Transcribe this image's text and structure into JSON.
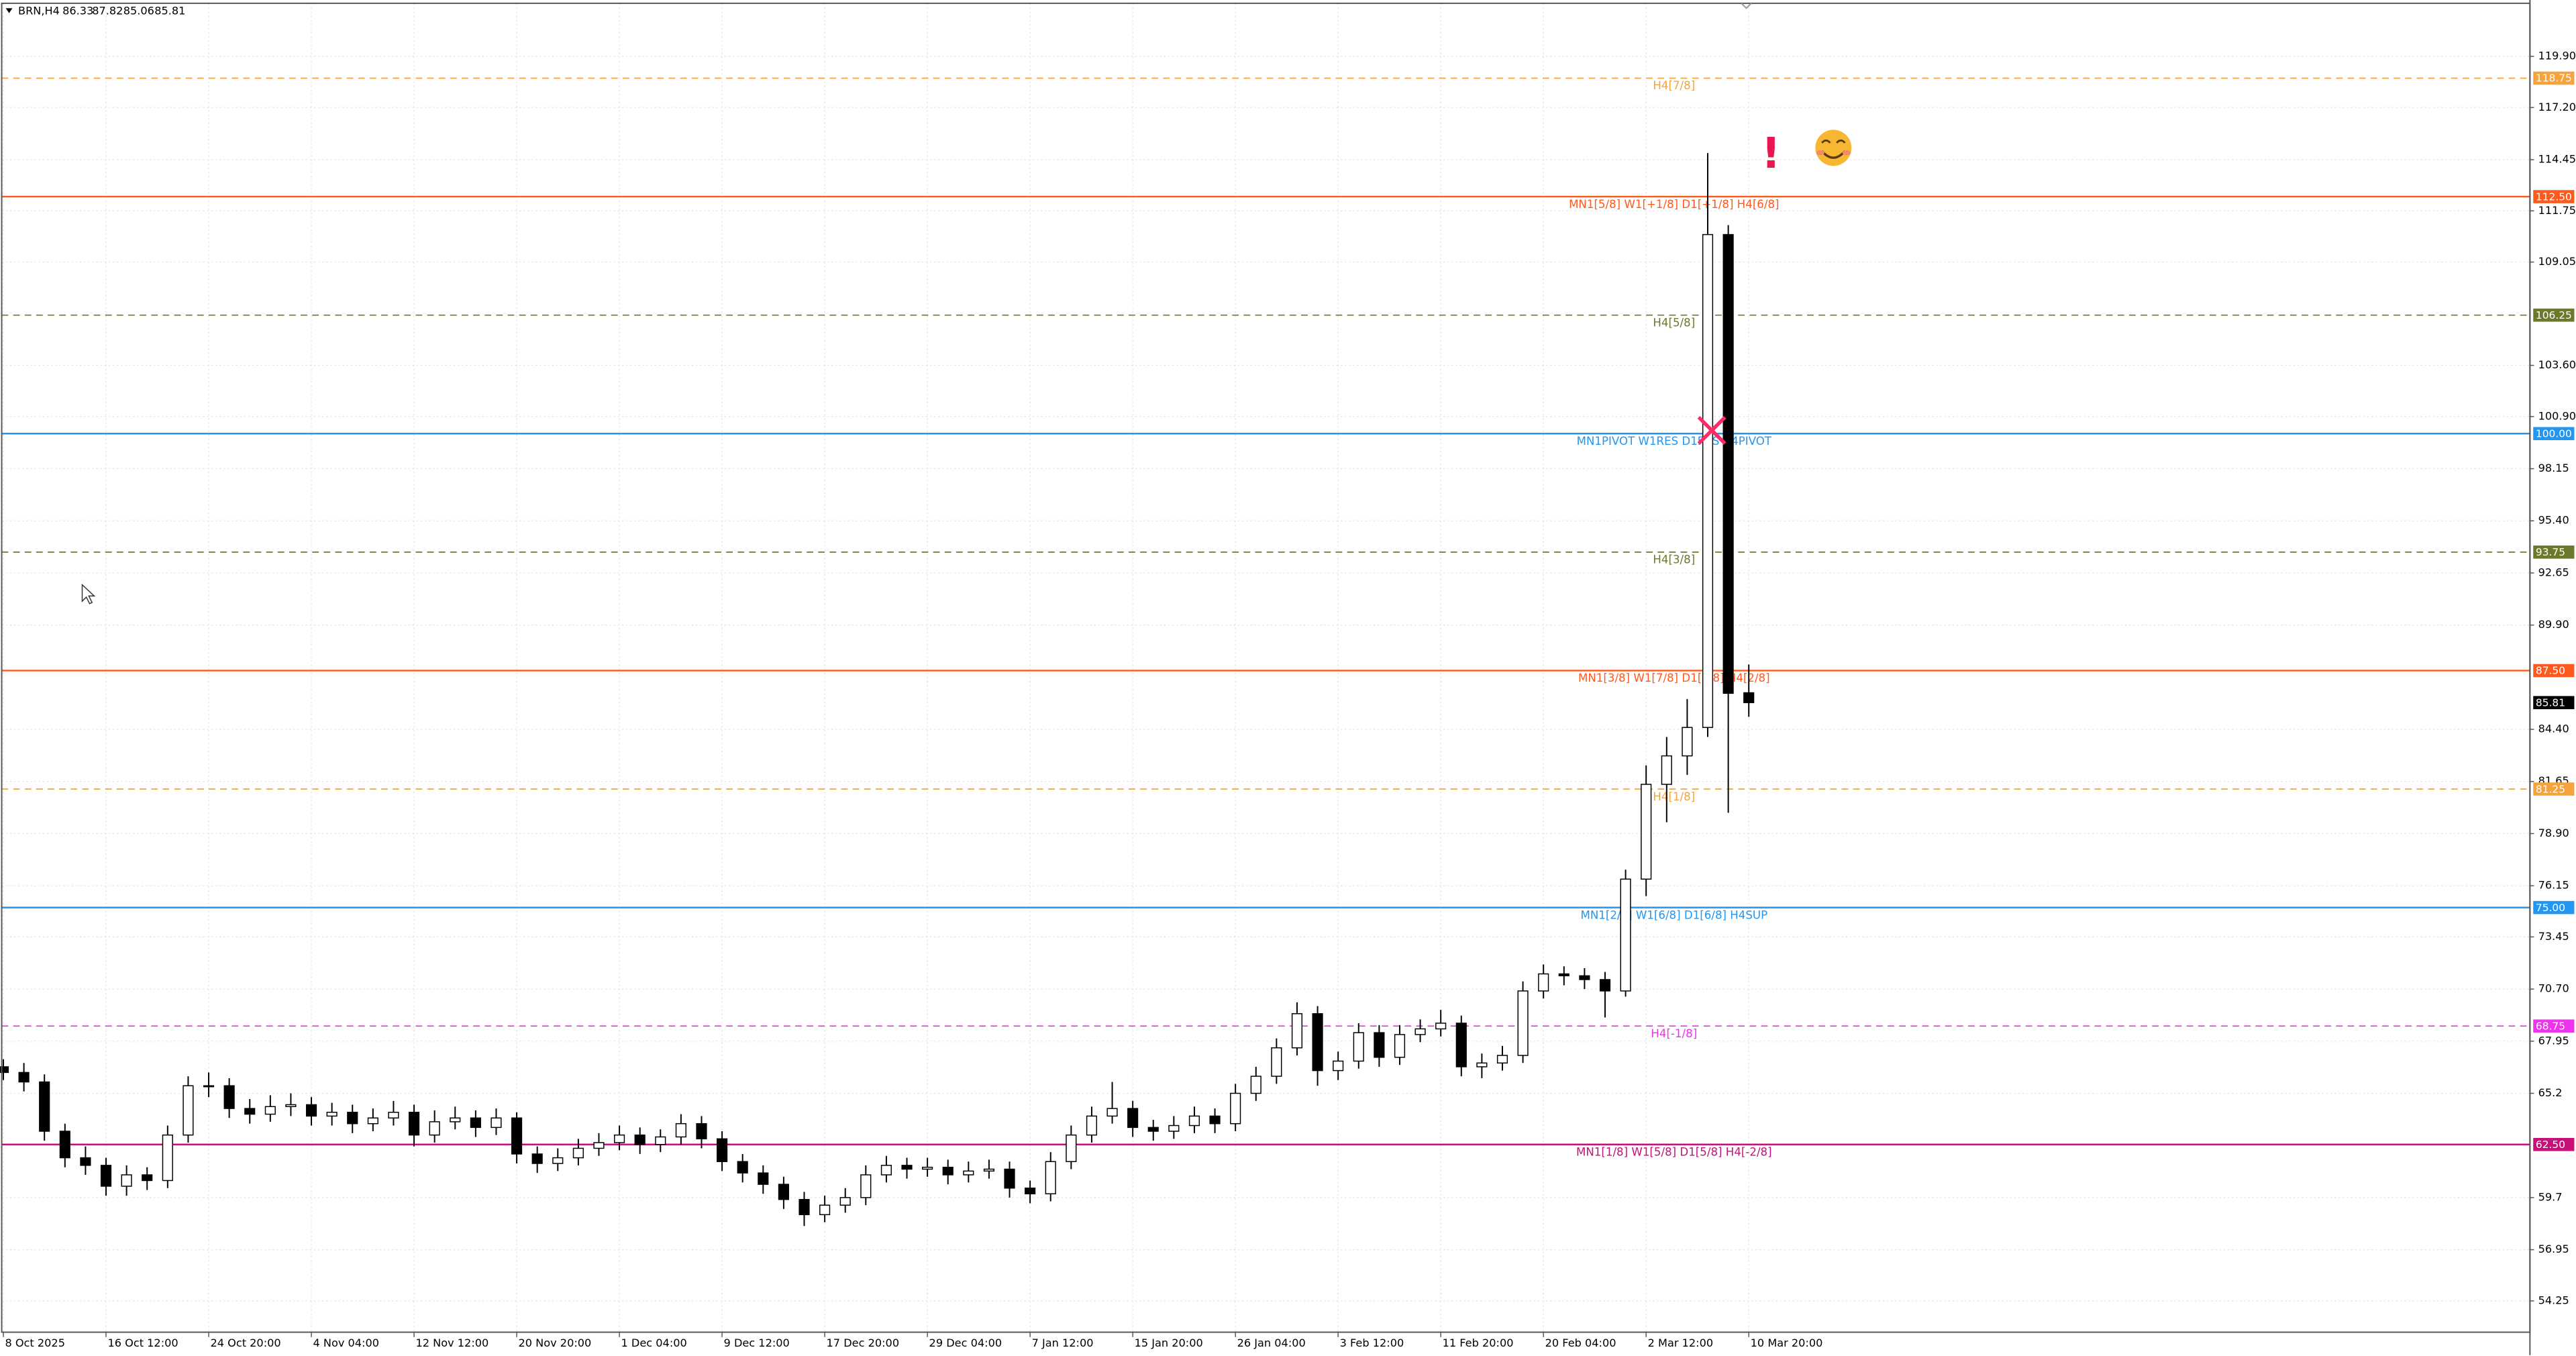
{
  "chart_data": {
    "type": "candlestick",
    "symbol": "BRN,H4",
    "categories": [
      "8 Oct 2025",
      null,
      null,
      null,
      null,
      "16 Oct 12:00",
      null,
      null,
      null,
      null,
      "24 Oct 20:00",
      null,
      null,
      null,
      null,
      "4 Nov 04:00",
      null,
      null,
      null,
      null,
      "12 Nov 12:00",
      null,
      null,
      null,
      null,
      "20 Nov 20:00",
      null,
      null,
      null,
      null,
      "1 Dec 04:00",
      null,
      null,
      null,
      null,
      "9 Dec 12:00",
      null,
      null,
      null,
      null,
      "17 Dec 20:00",
      null,
      null,
      null,
      null,
      "29 Dec 04:00",
      null,
      null,
      null,
      null,
      "7 Jan 12:00",
      null,
      null,
      null,
      null,
      "15 Jan 20:00",
      null,
      null,
      null,
      null,
      "26 Jan 04:00",
      null,
      null,
      null,
      null,
      "3 Feb 12:00",
      null,
      null,
      null,
      null,
      "11 Feb 20:00",
      null,
      null,
      null,
      null,
      "20 Feb 04:00",
      null,
      null,
      null,
      null,
      "2 Mar 12:00",
      null,
      null,
      null,
      null,
      "10 Mar 20:00"
    ],
    "open": [
      66.6,
      66.3,
      65.8,
      63.2,
      61.8,
      61.4,
      60.3,
      60.9,
      60.6,
      63.0,
      65.6,
      65.6,
      64.4,
      64.1,
      64.5,
      64.6,
      64.0,
      64.2,
      63.6,
      63.9,
      64.2,
      63.0,
      63.7,
      63.9,
      63.4,
      63.9,
      62.0,
      61.5,
      61.8,
      62.3,
      62.6,
      63.0,
      62.5,
      62.9,
      63.6,
      62.8,
      61.6,
      61.0,
      60.4,
      59.6,
      58.8,
      59.3,
      59.7,
      60.9,
      61.4,
      61.2,
      61.3,
      60.9,
      61.1,
      61.2,
      60.2,
      59.9,
      61.6,
      63.0,
      64.0,
      64.4,
      63.4,
      63.2,
      63.5,
      64.0,
      63.6,
      65.2,
      66.1,
      67.6,
      69.4,
      66.4,
      66.9,
      68.4,
      67.1,
      68.3,
      68.6,
      68.9,
      66.6,
      66.8,
      67.2,
      70.6,
      71.5,
      71.4,
      71.2,
      70.6,
      76.5,
      81.5,
      83.0,
      84.5,
      110.5,
      86.33
    ],
    "high": [
      67.0,
      66.8,
      66.2,
      63.6,
      62.4,
      61.8,
      61.4,
      61.3,
      63.5,
      66.1,
      66.3,
      66.0,
      64.9,
      65.1,
      65.2,
      65.0,
      64.7,
      64.6,
      64.4,
      64.8,
      64.6,
      64.3,
      64.5,
      64.3,
      64.4,
      64.2,
      62.4,
      62.3,
      62.8,
      63.1,
      63.5,
      63.4,
      63.3,
      64.1,
      64.0,
      63.2,
      62.0,
      61.4,
      60.8,
      60.0,
      59.8,
      60.2,
      61.4,
      61.9,
      61.8,
      61.8,
      61.7,
      61.6,
      61.7,
      61.6,
      60.6,
      62.1,
      63.5,
      64.5,
      65.8,
      64.8,
      63.8,
      64.0,
      64.5,
      64.4,
      65.7,
      66.6,
      68.1,
      70.0,
      69.8,
      67.4,
      68.9,
      68.8,
      68.8,
      69.1,
      69.6,
      69.3,
      67.3,
      67.7,
      71.1,
      72.0,
      71.9,
      71.8,
      71.6,
      77.0,
      82.5,
      84.0,
      86.0,
      114.8,
      111.0,
      87.82
    ],
    "low": [
      65.9,
      65.3,
      62.7,
      61.3,
      60.9,
      59.8,
      59.8,
      60.1,
      60.2,
      62.6,
      65.0,
      63.9,
      63.6,
      63.7,
      64.0,
      63.5,
      63.5,
      63.1,
      63.2,
      63.5,
      62.4,
      62.6,
      63.3,
      62.9,
      63.0,
      61.5,
      61.0,
      61.1,
      61.4,
      61.9,
      62.2,
      62.0,
      62.1,
      62.5,
      62.3,
      61.1,
      60.5,
      59.9,
      59.1,
      58.2,
      58.4,
      58.9,
      59.3,
      60.5,
      60.7,
      60.8,
      60.4,
      60.5,
      60.7,
      59.7,
      59.4,
      59.5,
      61.2,
      62.6,
      63.6,
      62.9,
      62.7,
      62.8,
      63.1,
      63.1,
      63.2,
      64.8,
      65.7,
      67.2,
      65.6,
      65.9,
      66.5,
      66.6,
      66.7,
      67.9,
      68.2,
      66.1,
      66.0,
      66.4,
      66.8,
      70.2,
      70.9,
      70.7,
      69.2,
      70.3,
      75.6,
      79.5,
      82.0,
      84.0,
      80.0,
      85.06
    ],
    "close": [
      66.3,
      65.8,
      63.2,
      61.8,
      61.4,
      60.3,
      60.9,
      60.6,
      63.0,
      65.6,
      65.6,
      64.4,
      64.1,
      64.5,
      64.6,
      64.0,
      64.2,
      63.6,
      63.9,
      64.2,
      63.0,
      63.7,
      63.9,
      63.4,
      63.9,
      62.0,
      61.5,
      61.8,
      62.3,
      62.6,
      63.0,
      62.5,
      62.9,
      63.6,
      62.8,
      61.6,
      61.0,
      60.4,
      59.6,
      58.8,
      59.3,
      59.7,
      60.9,
      61.4,
      61.2,
      61.3,
      60.9,
      61.1,
      61.2,
      60.2,
      59.9,
      61.6,
      63.0,
      64.0,
      64.4,
      63.4,
      63.2,
      63.5,
      64.0,
      63.6,
      65.2,
      66.1,
      67.6,
      69.4,
      66.4,
      66.9,
      68.4,
      67.1,
      68.3,
      68.6,
      68.9,
      66.6,
      66.8,
      67.2,
      70.6,
      71.5,
      71.4,
      71.2,
      70.6,
      76.5,
      81.5,
      83.0,
      84.5,
      110.5,
      86.3,
      85.81
    ],
    "up_color": "#ffffff",
    "down_color": "#000000",
    "wick_color": "#000000",
    "ylim": [
      52.6,
      122.7
    ],
    "yticks": [
      {
        "value": 119.9,
        "label": "119.90"
      },
      {
        "value": 117.2,
        "label": "117.20"
      },
      114.45,
      111.75,
      109.05,
      {
        "value": 103.6,
        "label": "103.60"
      },
      {
        "value": 100.9,
        "label": "100.90"
      },
      98.15,
      {
        "value": 95.4,
        "label": "95.40"
      },
      92.65,
      {
        "value": 89.9,
        "label": "89.90"
      },
      {
        "value": 84.4,
        "label": "84.40"
      },
      81.65,
      {
        "value": 78.9,
        "label": "78.90"
      },
      76.15,
      73.45,
      {
        "value": 70.7,
        "label": "70.70"
      },
      67.95,
      65.2,
      59.7,
      56.95,
      54.25
    ],
    "grid": true,
    "levels": {
      "values": [
        118.75,
        112.5,
        106.25,
        100,
        93.75,
        87.5,
        81.25,
        75,
        68.75,
        62.5
      ],
      "value_labels": [
        "118.75",
        "112.50",
        "106.25",
        "100.00",
        "93.75",
        "87.50",
        "81.25",
        "75.00",
        "68.75",
        "62.50"
      ],
      "labels": [
        "H4[7/8]",
        "MN1[5/8] W1[+1/8] D1[+1/8] H4[6/8]",
        "H4[5/8]",
        "MN1PIVOT W1RES D1RES H4PIVOT",
        "H4[3/8]",
        "MN1[3/8] W1[7/8] D1[7/8] H4[2/8]",
        "H4[1/8]",
        "MN1[2/8] W1[6/8] D1[6/8] H4SUP",
        "H4[-1/8]",
        "MN1[1/8] W1[5/8] D1[5/8] H4[-2/8]"
      ],
      "colors": [
        "#f5a33a",
        "#ff5a1e",
        "#6b7a2a",
        "#2196f3",
        "#6b7a2a",
        "#ff5a1e",
        "#f5a33a",
        "#2196f3",
        "#ee33ee",
        "#c8107a"
      ],
      "dashed": [
        true,
        false,
        true,
        false,
        true,
        false,
        true,
        false,
        true,
        false
      ]
    },
    "alert_icon": "!"
  }
}
